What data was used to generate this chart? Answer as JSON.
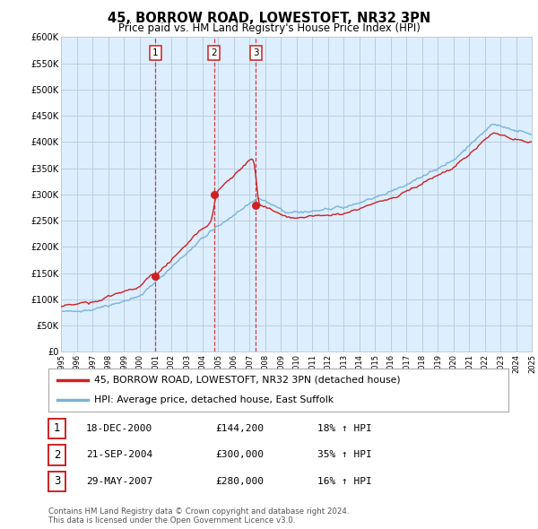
{
  "title": "45, BORROW ROAD, LOWESTOFT, NR32 3PN",
  "subtitle": "Price paid vs. HM Land Registry's House Price Index (HPI)",
  "ylabel_ticks": [
    "£0",
    "£50K",
    "£100K",
    "£150K",
    "£200K",
    "£250K",
    "£300K",
    "£350K",
    "£400K",
    "£450K",
    "£500K",
    "£550K",
    "£600K"
  ],
  "ytick_values": [
    0,
    50000,
    100000,
    150000,
    200000,
    250000,
    300000,
    350000,
    400000,
    450000,
    500000,
    550000,
    600000
  ],
  "xlim_start": 1995,
  "xlim_end": 2025,
  "hpi_color": "#7ab3d4",
  "price_color": "#cc2222",
  "transaction_color": "#cc2222",
  "chart_bg_color": "#ddeeff",
  "grid_color": "#bbccdd",
  "transactions": [
    {
      "num": 1,
      "date": "18-DEC-2000",
      "price": 144200,
      "pct": "18%",
      "dir": "↑",
      "year": 2001.0
    },
    {
      "num": 2,
      "date": "21-SEP-2004",
      "price": 300000,
      "pct": "35%",
      "dir": "↑",
      "year": 2004.72
    },
    {
      "num": 3,
      "date": "29-MAY-2007",
      "price": 280000,
      "pct": "16%",
      "dir": "↑",
      "year": 2007.4
    }
  ],
  "legend_label_price": "45, BORROW ROAD, LOWESTOFT, NR32 3PN (detached house)",
  "legend_label_hpi": "HPI: Average price, detached house, East Suffolk",
  "footer1": "Contains HM Land Registry data © Crown copyright and database right 2024.",
  "footer2": "This data is licensed under the Open Government Licence v3.0.",
  "background_color": "#ffffff",
  "title_fontsize": 10.5,
  "subtitle_fontsize": 8.5
}
